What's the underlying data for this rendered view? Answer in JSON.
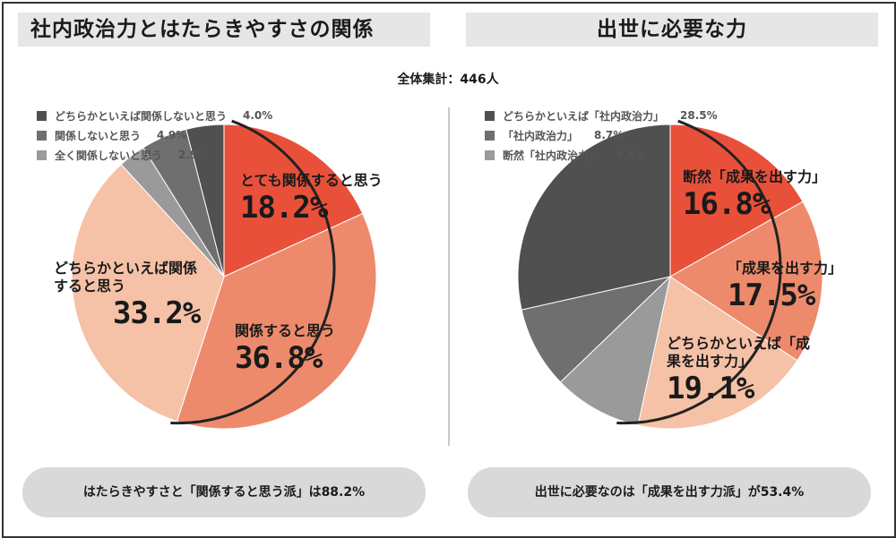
{
  "total_label": "全体集計：446人",
  "colors": {
    "red": "#e9503a",
    "salmon": "#ee8a6c",
    "peach": "#f5c1a7",
    "gray_light": "#9a9a9a",
    "gray_mid": "#6f6f6f",
    "gray_dark": "#505050"
  },
  "chart_data": [
    {
      "type": "pie",
      "title": "社内政治力とはたらきやすさの関係",
      "slices": [
        {
          "label": "とても関係すると思う",
          "value": 18.2,
          "pct_text": "18.2%",
          "color": "#e9503a"
        },
        {
          "label": "関係すると思う",
          "value": 36.8,
          "pct_text": "36.8%",
          "color": "#ee8a6c"
        },
        {
          "label": "どちらかといえば関係すると思う",
          "value": 33.2,
          "pct_text": "33.2%",
          "color": "#f5c1a7"
        },
        {
          "label": "全く関係しないと思う",
          "value": 2.9,
          "pct_text": "2.9%",
          "color": "#9a9a9a"
        },
        {
          "label": "関係しないと思う",
          "value": 4.9,
          "pct_text": "4.9%",
          "color": "#6f6f6f"
        },
        {
          "label": "どちらかといえば関係しないと思う",
          "value": 4.0,
          "pct_text": "4.0%",
          "color": "#505050"
        }
      ],
      "legend": [
        {
          "label": "どちらかといえば関係しないと思う",
          "value": "4.0%",
          "color": "#505050"
        },
        {
          "label": "関係しないと思う",
          "value": "4.9%",
          "color": "#6f6f6f"
        },
        {
          "label": "全く関係しないと思う",
          "value": "2.9%",
          "color": "#9a9a9a"
        }
      ],
      "in_chart_labels": [
        {
          "text": "とても関係すると思う",
          "pct": "18.2%"
        },
        {
          "text": "関係すると思う",
          "pct": "36.8%"
        },
        {
          "text": "どちらかといえば関係すると思う",
          "pct": "33.2%"
        }
      ],
      "summary": "はたらきやすさと「関係すると思う派」は88.2%"
    },
    {
      "type": "pie",
      "title": "出世に必要な力",
      "slices": [
        {
          "label": "断然「成果を出す力」",
          "value": 16.8,
          "pct_text": "16.8%",
          "color": "#e9503a"
        },
        {
          "label": "「成果を出す力」",
          "value": 17.5,
          "pct_text": "17.5%",
          "color": "#ee8a6c"
        },
        {
          "label": "どちらかといえば「成果を出す力」",
          "value": 19.1,
          "pct_text": "19.1%",
          "color": "#f5c1a7"
        },
        {
          "label": "断然「社内政治力」",
          "value": 9.4,
          "pct_text": "9.4%",
          "color": "#9a9a9a"
        },
        {
          "label": "「社内政治力」",
          "value": 8.7,
          "pct_text": "8.7%",
          "color": "#6f6f6f"
        },
        {
          "label": "どちらかといえば「社内政治力」",
          "value": 28.5,
          "pct_text": "28.5%",
          "color": "#505050"
        }
      ],
      "legend": [
        {
          "label": "どちらかといえば「社内政治力」",
          "value": "28.5%",
          "color": "#505050"
        },
        {
          "label": "「社内政治力」",
          "value": "8.7%",
          "color": "#6f6f6f"
        },
        {
          "label": "断然「社内政治力」",
          "value": "9.4%",
          "color": "#9a9a9a"
        }
      ],
      "in_chart_labels": [
        {
          "text": "断然「成果を出す力」",
          "pct": "16.8%"
        },
        {
          "text": "「成果を出す力」",
          "pct": "17.5%"
        },
        {
          "text": "どちらかといえば「成果を出す力」",
          "pct": "19.1%"
        }
      ],
      "summary": "出世に必要なのは「成果を出す力派」が53.4%"
    }
  ]
}
